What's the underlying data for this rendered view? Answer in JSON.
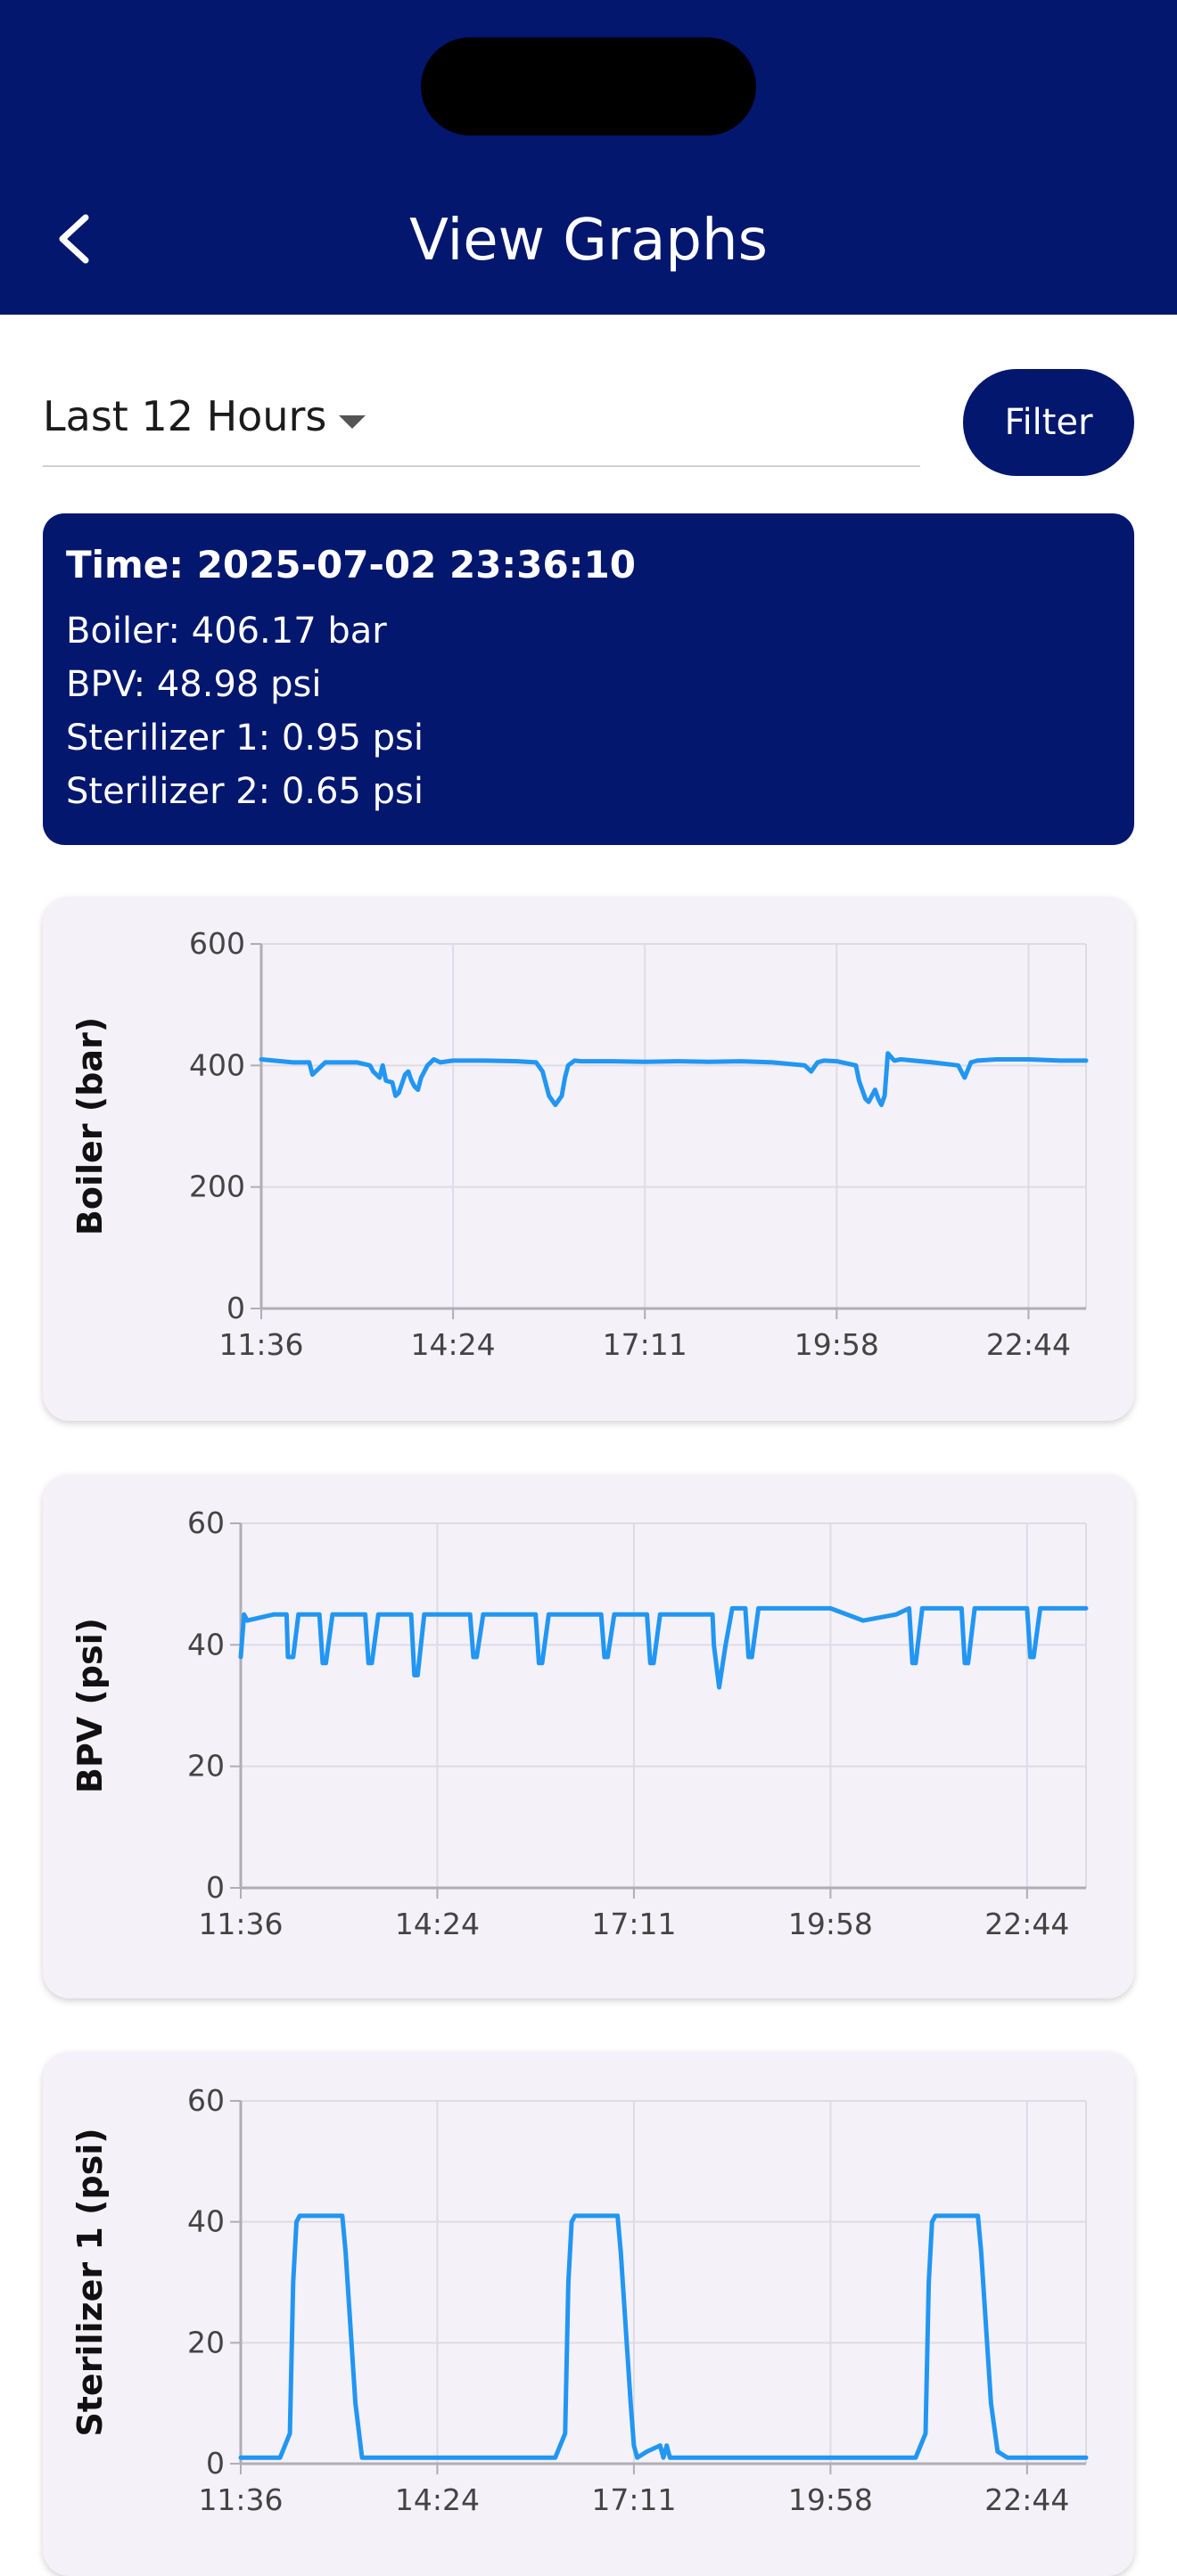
{
  "header": {
    "title": "View Graphs",
    "back_icon": "chevron-left-icon"
  },
  "controls": {
    "range_label": "Last 12 Hours",
    "filter_label": "Filter"
  },
  "info": {
    "time": "Time: 2025-07-02 23:36:10",
    "boiler": "Boiler: 406.17 bar",
    "bpv": "BPV: 48.98 psi",
    "sterilizer1": "Sterilizer 1: 0.95 psi",
    "sterilizer2": "Sterilizer 2: 0.65 psi"
  },
  "colors": {
    "primary": "#03176f",
    "line": "#2196f3",
    "card": "#f5f1f8"
  },
  "chart_data": [
    {
      "type": "line",
      "ylabel": "Boiler (bar)",
      "ylim": [
        0,
        600
      ],
      "yticks": [
        "0",
        "200",
        "400",
        "600"
      ],
      "xticks": [
        "11:36",
        "14:24",
        "17:11",
        "19:58",
        "22:44"
      ],
      "xlim": [
        0,
        12.9
      ],
      "series": [
        {
          "x": [
            0,
            0.2,
            0.5,
            0.75,
            0.8,
            1.0,
            1.5,
            1.7,
            1.75,
            1.85,
            1.9,
            1.95,
            2.05,
            2.1,
            2.15,
            2.2,
            2.25,
            2.3,
            2.35,
            2.4,
            2.45,
            2.5,
            2.6,
            2.7,
            2.8,
            3.0,
            3.5,
            4.0,
            4.3,
            4.4,
            4.5,
            4.6,
            4.7,
            4.75,
            4.8,
            4.9,
            5.0,
            5.5,
            6.0,
            6.5,
            7.0,
            7.5,
            8.0,
            8.5,
            8.6,
            8.7,
            8.8,
            9.0,
            9.3,
            9.35,
            9.45,
            9.5,
            9.6,
            9.65,
            9.7,
            9.75,
            9.8,
            9.9,
            10.0,
            10.5,
            10.9,
            11.0,
            11.1,
            11.2,
            11.5,
            12.0,
            12.5,
            12.9
          ],
          "values": [
            410,
            408,
            405,
            405,
            385,
            405,
            405,
            400,
            390,
            380,
            400,
            375,
            372,
            350,
            355,
            370,
            385,
            390,
            375,
            365,
            360,
            380,
            400,
            410,
            405,
            408,
            408,
            407,
            405,
            390,
            350,
            335,
            350,
            380,
            400,
            408,
            407,
            407,
            406,
            407,
            406,
            407,
            405,
            400,
            390,
            405,
            408,
            407,
            400,
            375,
            345,
            340,
            360,
            345,
            335,
            350,
            420,
            408,
            410,
            405,
            400,
            380,
            405,
            408,
            410,
            410,
            408,
            408
          ]
        }
      ]
    },
    {
      "type": "line",
      "ylabel": "BPV (psi)",
      "ylim": [
        0,
        60
      ],
      "yticks": [
        "0",
        "20",
        "40",
        "60"
      ],
      "xticks": [
        "11:36",
        "14:24",
        "17:11",
        "19:58",
        "22:44"
      ],
      "xlim": [
        0,
        12.9
      ],
      "series": [
        {
          "x": [
            0,
            0.05,
            0.1,
            0.5,
            0.7,
            0.72,
            0.8,
            0.88,
            0.9,
            1.2,
            1.25,
            1.3,
            1.4,
            1.5,
            1.9,
            1.95,
            2.0,
            2.1,
            2.2,
            2.6,
            2.65,
            2.7,
            2.8,
            2.9,
            3.0,
            3.5,
            3.55,
            3.6,
            3.7,
            3.8,
            4.5,
            4.55,
            4.6,
            4.7,
            4.8,
            5.5,
            5.55,
            5.6,
            5.7,
            5.8,
            6.2,
            6.25,
            6.3,
            6.4,
            6.5,
            7.2,
            7.22,
            7.3,
            7.4,
            7.5,
            7.6,
            7.7,
            7.75,
            7.8,
            7.9,
            8.0,
            8.5,
            9.0,
            9.5,
            10.0,
            10.2,
            10.25,
            10.3,
            10.4,
            10.5,
            11.0,
            11.05,
            11.1,
            11.2,
            11.3,
            12.0,
            12.05,
            12.1,
            12.2,
            12.3,
            12.9
          ],
          "values": [
            38,
            45,
            44,
            45,
            45,
            38,
            38,
            45,
            45,
            45,
            37,
            37,
            45,
            45,
            45,
            37,
            37,
            45,
            45,
            45,
            35,
            35,
            45,
            45,
            45,
            45,
            38,
            38,
            45,
            45,
            45,
            37,
            37,
            45,
            45,
            45,
            38,
            38,
            45,
            45,
            45,
            37,
            37,
            45,
            45,
            45,
            40,
            33,
            40,
            46,
            46,
            46,
            38,
            38,
            46,
            46,
            46,
            46,
            44,
            45,
            46,
            37,
            37,
            46,
            46,
            46,
            37,
            37,
            46,
            46,
            46,
            38,
            38,
            46,
            46,
            46
          ]
        }
      ]
    },
    {
      "type": "line",
      "ylabel": "Sterilizer 1 (psi)",
      "ylim": [
        0,
        60
      ],
      "yticks": [
        "0",
        "20",
        "40",
        "60"
      ],
      "xticks": [
        "11:36",
        "14:24",
        "17:11",
        "19:58",
        "22:44"
      ],
      "xlim": [
        0,
        12.9
      ],
      "series": [
        {
          "x": [
            0,
            0.6,
            0.75,
            0.8,
            0.85,
            0.9,
            1.2,
            1.55,
            1.6,
            1.75,
            1.85,
            2.0,
            2.5,
            3.0,
            3.5,
            4.5,
            4.8,
            4.95,
            5.0,
            5.05,
            5.1,
            5.4,
            5.75,
            5.8,
            5.95,
            6.0,
            6.05,
            6.2,
            6.4,
            6.45,
            6.5,
            6.55,
            7.0,
            8.0,
            9.0,
            10.2,
            10.3,
            10.45,
            10.5,
            10.55,
            10.6,
            10.9,
            11.25,
            11.3,
            11.45,
            11.55,
            11.7,
            12.9
          ],
          "values": [
            1,
            1,
            5,
            30,
            40,
            41,
            41,
            41,
            35,
            10,
            1,
            1,
            1,
            1,
            1,
            1,
            1,
            5,
            30,
            40,
            41,
            41,
            41,
            35,
            10,
            3,
            1,
            2,
            3,
            1,
            3,
            1,
            1,
            1,
            1,
            1,
            1,
            5,
            30,
            40,
            41,
            41,
            41,
            35,
            10,
            2,
            1,
            1
          ]
        }
      ]
    }
  ]
}
